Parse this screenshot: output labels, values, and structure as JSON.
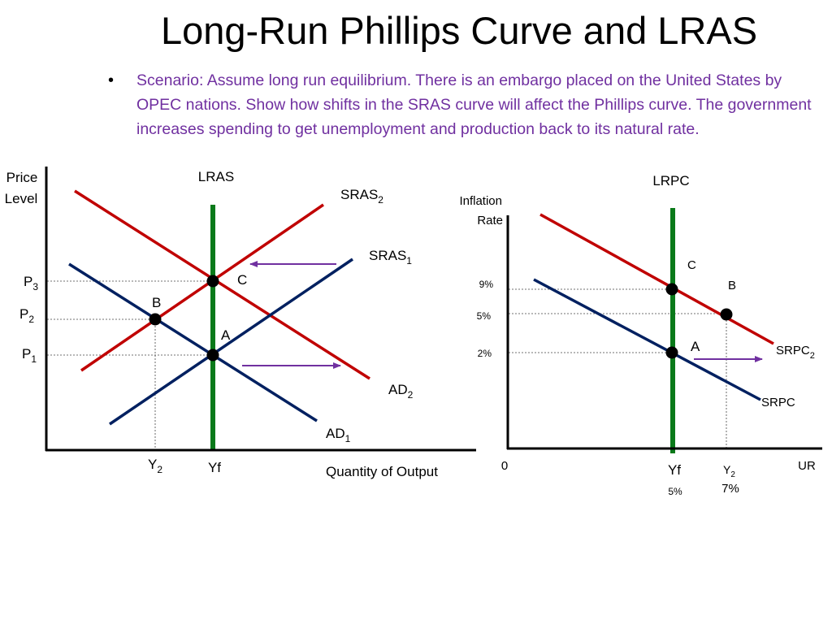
{
  "slide": {
    "title": "Long-Run Phillips Curve and LRAS",
    "scenario": "Scenario:  Assume long run equilibrium. There is an embargo placed on the United States by OPEC nations. Show how shifts in the SRAS curve will affect the Phillips curve. The government increases spending to get unemployment and production back to its natural rate.",
    "bullet": "•"
  },
  "colors": {
    "scenario_text": "#7030a0",
    "red_curve": "#c00000",
    "blue_curve": "#002060",
    "vertical_line": "#0a7a1a",
    "arrow": "#7030a0",
    "axis": "#000000",
    "guide": "#444444"
  },
  "left_graph": {
    "y_axis_label_1": "Price",
    "y_axis_label_2": "Level",
    "x_axis_label": "Quantity of Output",
    "lras_label": "LRAS",
    "sras2": {
      "base": "SRAS",
      "sub": "2"
    },
    "sras1": {
      "base": "SRAS",
      "sub": "1"
    },
    "ad2": {
      "base": "AD",
      "sub": "2"
    },
    "ad1": {
      "base": "AD",
      "sub": "1"
    },
    "p3": {
      "base": "P",
      "sub": "3"
    },
    "p2": {
      "base": "P",
      "sub": "2"
    },
    "p1": {
      "base": "P",
      "sub": "1"
    },
    "y2": {
      "base": "Y",
      "sub": "2"
    },
    "yf": "Yf",
    "point_a": "A",
    "point_b": "B",
    "point_c": "C"
  },
  "right_graph": {
    "y_axis_label_1": "Inflation",
    "y_axis_label_2": "Rate",
    "lrpc_label": "LRPC",
    "srpc2": {
      "base": "SRPC",
      "sub": "2"
    },
    "srpc": "SRPC",
    "rate_9": "9%",
    "rate_5": "5%",
    "rate_2": "2%",
    "origin": "0",
    "x_axis_label": "UR",
    "yf": "Yf",
    "yf_rate": "5%",
    "y2": {
      "base": "Y",
      "sub": "2"
    },
    "y2_rate": "7%",
    "point_a": "A",
    "point_b": "B",
    "point_c": "C"
  }
}
